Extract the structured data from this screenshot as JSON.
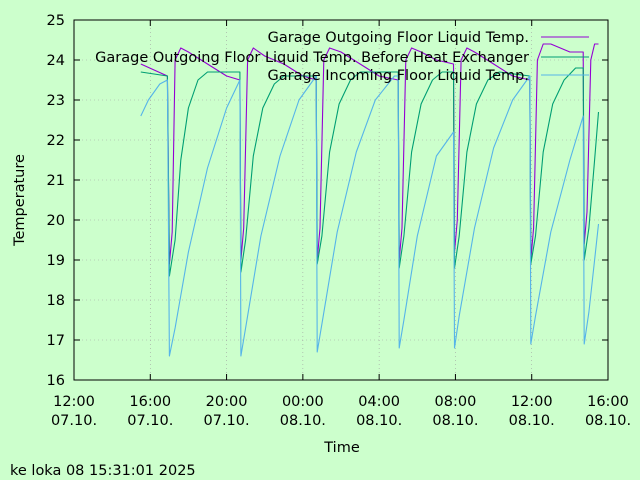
{
  "background_color": "#ccffcc",
  "chart_data": {
    "type": "line",
    "title": "",
    "xlabel": "Time",
    "ylabel": "Temperature",
    "ylim": [
      16,
      25
    ],
    "xlim_hours": [
      0,
      28
    ],
    "yticks": [
      16,
      17,
      18,
      19,
      20,
      21,
      22,
      23,
      24,
      25
    ],
    "xticks": [
      {
        "hour": 0,
        "time": "12:00",
        "date": "07.10."
      },
      {
        "hour": 4,
        "time": "16:00",
        "date": "07.10."
      },
      {
        "hour": 8,
        "time": "20:00",
        "date": "07.10."
      },
      {
        "hour": 12,
        "time": "00:00",
        "date": "08.10."
      },
      {
        "hour": 16,
        "time": "04:00",
        "date": "08.10."
      },
      {
        "hour": 20,
        "time": "08:00",
        "date": "08.10."
      },
      {
        "hour": 24,
        "time": "12:00",
        "date": "08.10."
      },
      {
        "hour": 28,
        "time": "16:00",
        "date": "08.10."
      }
    ],
    "grid": true,
    "legend_position": "top-right",
    "timestamp": "ke loka 08 15:31:01 2025",
    "series": [
      {
        "name": "Garage Outgoing Floor Liquid Temp.",
        "color": "#9400d3",
        "points": [
          [
            3.5,
            23.9
          ],
          [
            4.9,
            23.6
          ],
          [
            5.0,
            18.9
          ],
          [
            5.15,
            19.7
          ],
          [
            5.3,
            24.0
          ],
          [
            5.6,
            24.3
          ],
          [
            6.0,
            24.2
          ],
          [
            7.0,
            23.9
          ],
          [
            8.0,
            23.6
          ],
          [
            8.7,
            23.5
          ],
          [
            8.75,
            19.0
          ],
          [
            8.9,
            19.8
          ],
          [
            9.1,
            24.0
          ],
          [
            9.4,
            24.3
          ],
          [
            10.0,
            24.1
          ],
          [
            11.0,
            23.9
          ],
          [
            12.0,
            23.6
          ],
          [
            12.7,
            23.5
          ],
          [
            12.75,
            19.0
          ],
          [
            12.9,
            19.8
          ],
          [
            13.1,
            24.0
          ],
          [
            13.4,
            24.3
          ],
          [
            14.0,
            24.2
          ],
          [
            15.0,
            23.9
          ],
          [
            16.0,
            23.6
          ],
          [
            17.0,
            23.5
          ],
          [
            17.05,
            19.0
          ],
          [
            17.2,
            19.8
          ],
          [
            17.4,
            24.0
          ],
          [
            17.7,
            24.3
          ],
          [
            18.2,
            24.2
          ],
          [
            19.0,
            24.0
          ],
          [
            19.9,
            23.9
          ],
          [
            19.95,
            19.2
          ],
          [
            20.1,
            20.0
          ],
          [
            20.3,
            24.0
          ],
          [
            20.6,
            24.3
          ],
          [
            21.0,
            24.2
          ],
          [
            22.0,
            23.9
          ],
          [
            23.0,
            23.6
          ],
          [
            23.9,
            23.5
          ],
          [
            23.95,
            19.0
          ],
          [
            24.1,
            19.8
          ],
          [
            24.3,
            24.0
          ],
          [
            24.6,
            24.4
          ],
          [
            25.0,
            24.4
          ],
          [
            26.0,
            24.2
          ],
          [
            26.7,
            24.2
          ],
          [
            26.75,
            19.4
          ],
          [
            26.9,
            20.2
          ],
          [
            27.1,
            24.0
          ],
          [
            27.3,
            24.4
          ],
          [
            27.5,
            24.4
          ]
        ]
      },
      {
        "name": "Garage Outgoing Floor Liquid Temp. Before Heat Exchanger",
        "color": "#009e73",
        "points": [
          [
            3.5,
            23.7
          ],
          [
            4.9,
            23.6
          ],
          [
            5.0,
            18.6
          ],
          [
            5.3,
            19.5
          ],
          [
            5.6,
            21.5
          ],
          [
            6.0,
            22.8
          ],
          [
            6.5,
            23.5
          ],
          [
            7.0,
            23.7
          ],
          [
            8.7,
            23.7
          ],
          [
            8.75,
            18.7
          ],
          [
            9.0,
            19.5
          ],
          [
            9.4,
            21.6
          ],
          [
            9.9,
            22.8
          ],
          [
            10.5,
            23.4
          ],
          [
            11.0,
            23.6
          ],
          [
            12.7,
            23.6
          ],
          [
            12.75,
            18.9
          ],
          [
            13.0,
            19.6
          ],
          [
            13.4,
            21.7
          ],
          [
            13.9,
            22.9
          ],
          [
            14.5,
            23.5
          ],
          [
            15.0,
            23.7
          ],
          [
            17.0,
            23.7
          ],
          [
            17.05,
            18.8
          ],
          [
            17.3,
            19.6
          ],
          [
            17.7,
            21.7
          ],
          [
            18.2,
            22.9
          ],
          [
            18.8,
            23.5
          ],
          [
            19.3,
            23.7
          ],
          [
            19.9,
            23.7
          ],
          [
            19.95,
            18.8
          ],
          [
            20.2,
            19.6
          ],
          [
            20.6,
            21.7
          ],
          [
            21.1,
            22.9
          ],
          [
            21.7,
            23.5
          ],
          [
            22.3,
            23.7
          ],
          [
            23.9,
            23.6
          ],
          [
            23.95,
            18.9
          ],
          [
            24.2,
            19.6
          ],
          [
            24.6,
            21.7
          ],
          [
            25.1,
            22.9
          ],
          [
            25.7,
            23.5
          ],
          [
            26.3,
            23.8
          ],
          [
            26.7,
            23.8
          ],
          [
            26.75,
            19.0
          ],
          [
            27.0,
            19.8
          ],
          [
            27.3,
            21.5
          ],
          [
            27.5,
            22.7
          ]
        ]
      },
      {
        "name": "Garage Incoming Floor Liquid Temp.",
        "color": "#56b4e9",
        "points": [
          [
            3.5,
            22.6
          ],
          [
            3.9,
            23.0
          ],
          [
            4.5,
            23.4
          ],
          [
            4.9,
            23.5
          ],
          [
            5.0,
            16.6
          ],
          [
            5.3,
            17.3
          ],
          [
            6.0,
            19.2
          ],
          [
            7.0,
            21.3
          ],
          [
            8.0,
            22.8
          ],
          [
            8.7,
            23.5
          ],
          [
            8.75,
            16.6
          ],
          [
            9.0,
            17.3
          ],
          [
            9.8,
            19.6
          ],
          [
            10.8,
            21.6
          ],
          [
            11.8,
            23.0
          ],
          [
            12.7,
            23.6
          ],
          [
            12.75,
            16.7
          ],
          [
            13.0,
            17.4
          ],
          [
            13.8,
            19.7
          ],
          [
            14.8,
            21.7
          ],
          [
            15.8,
            23.0
          ],
          [
            16.8,
            23.6
          ],
          [
            17.0,
            23.6
          ],
          [
            17.05,
            16.8
          ],
          [
            17.3,
            17.5
          ],
          [
            18.0,
            19.6
          ],
          [
            19.0,
            21.6
          ],
          [
            19.9,
            22.2
          ],
          [
            19.95,
            16.8
          ],
          [
            20.2,
            17.6
          ],
          [
            21.0,
            19.8
          ],
          [
            22.0,
            21.8
          ],
          [
            23.0,
            23.0
          ],
          [
            23.9,
            23.6
          ],
          [
            23.95,
            16.9
          ],
          [
            24.2,
            17.6
          ],
          [
            25.0,
            19.7
          ],
          [
            26.0,
            21.5
          ],
          [
            26.7,
            22.6
          ],
          [
            26.75,
            16.9
          ],
          [
            27.0,
            17.7
          ],
          [
            27.3,
            19.0
          ],
          [
            27.5,
            19.9
          ]
        ]
      }
    ]
  }
}
